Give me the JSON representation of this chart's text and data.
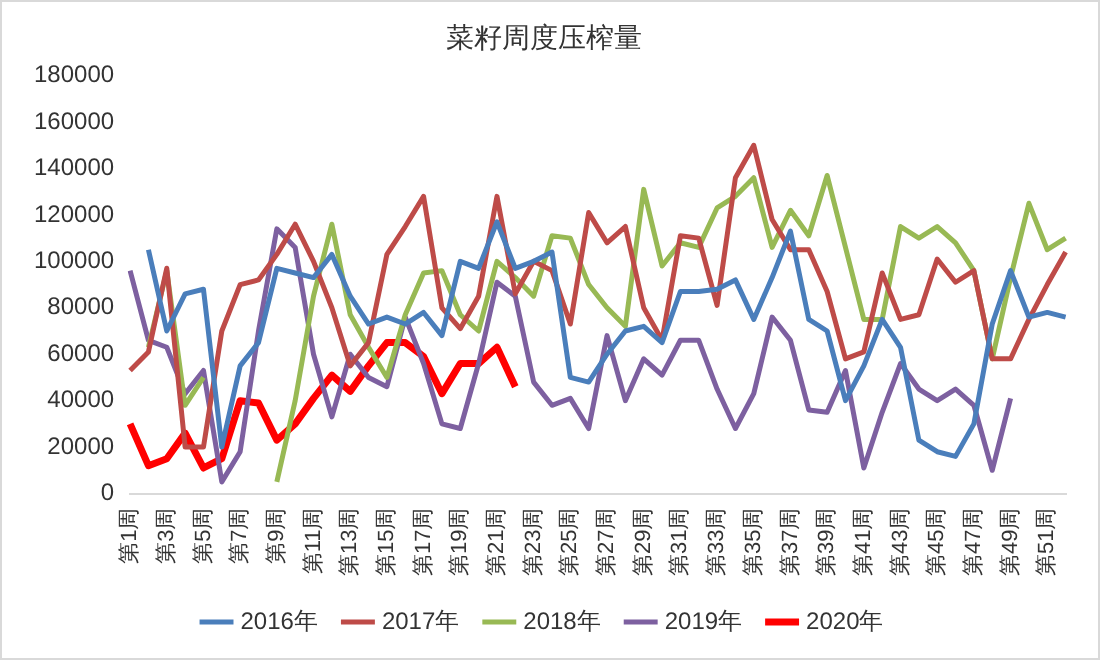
{
  "chart_data": {
    "type": "line",
    "title": "菜籽周度压榨量",
    "categories": [
      "第1周",
      null,
      "第3周",
      null,
      "第5周",
      null,
      "第7周",
      null,
      "第9周",
      null,
      "第11周",
      null,
      "第13周",
      null,
      "第15周",
      null,
      "第17周",
      null,
      "第19周",
      null,
      "第21周",
      null,
      "第23周",
      null,
      "第25周",
      null,
      "第27周",
      null,
      "第29周",
      null,
      "第31周",
      null,
      "第33周",
      null,
      "第35周",
      null,
      "第37周",
      null,
      "第39周",
      null,
      "第41周",
      null,
      "第43周",
      null,
      "第45周",
      null,
      "第47周",
      null,
      "第49周",
      null,
      "第51周",
      null
    ],
    "series": [
      {
        "name": "2016年",
        "color": "#4a7ebb",
        "values": [
          null,
          105000,
          70000,
          86000,
          88000,
          20000,
          55000,
          65000,
          97000,
          95000,
          93000,
          103000,
          85000,
          73000,
          76000,
          73000,
          78000,
          68000,
          100000,
          97000,
          117000,
          97000,
          100000,
          104000,
          50000,
          48000,
          60000,
          70000,
          72000,
          65000,
          87000,
          87000,
          88000,
          92000,
          75000,
          93000,
          113000,
          75000,
          70000,
          40000,
          55000,
          75000,
          63000,
          23000,
          18000,
          16000,
          30000,
          73000,
          96000,
          76000,
          78000,
          76000
        ]
      },
      {
        "name": "2017年",
        "color": "#be4b48",
        "values": [
          53000,
          61000,
          97000,
          20000,
          20000,
          70000,
          90000,
          92000,
          103000,
          116000,
          100000,
          80000,
          55000,
          65000,
          103000,
          115000,
          128000,
          80000,
          71000,
          85000,
          128000,
          86000,
          100000,
          96000,
          73000,
          121000,
          108000,
          115000,
          80000,
          66000,
          111000,
          110000,
          81000,
          136000,
          150000,
          118000,
          105000,
          105000,
          87000,
          58000,
          61000,
          95000,
          75000,
          77000,
          101000,
          91000,
          96000,
          58000,
          58000,
          75000,
          90000,
          104000
        ]
      },
      {
        "name": "2018年",
        "color": "#98b954",
        "values": [
          null,
          63000,
          96000,
          38000,
          50000,
          null,
          null,
          null,
          5000,
          40000,
          85000,
          116000,
          77000,
          63000,
          50000,
          77000,
          95000,
          96000,
          77000,
          70000,
          100000,
          93000,
          85000,
          111000,
          110000,
          90000,
          80000,
          72000,
          131000,
          98000,
          108000,
          106000,
          123000,
          128000,
          136000,
          106000,
          122000,
          111000,
          137000,
          106000,
          75000,
          75000,
          115000,
          110000,
          115000,
          108000,
          96000,
          58000,
          93000,
          125000,
          105000,
          110000
        ]
      },
      {
        "name": "2019年",
        "color": "#7d60a0",
        "values": [
          96000,
          66000,
          63000,
          43000,
          53000,
          5000,
          18000,
          70000,
          114000,
          106000,
          60000,
          33000,
          60000,
          50000,
          46000,
          76000,
          56000,
          30000,
          28000,
          56000,
          91000,
          85000,
          48000,
          38000,
          41000,
          28000,
          68000,
          40000,
          58000,
          51000,
          66000,
          66000,
          45000,
          28000,
          43000,
          76000,
          66000,
          36000,
          35000,
          53000,
          11000,
          35000,
          56000,
          45000,
          40000,
          45000,
          38000,
          10000,
          41000,
          null,
          null,
          null
        ]
      },
      {
        "name": "2020年",
        "color": "#ff0000",
        "values": [
          30000,
          12000,
          15000,
          26000,
          11000,
          15000,
          40000,
          39000,
          23000,
          30000,
          41000,
          51000,
          44000,
          55000,
          65000,
          65000,
          59000,
          43000,
          56000,
          56000,
          63000,
          46000,
          null,
          null,
          null,
          null,
          null,
          null,
          null,
          null,
          null,
          null,
          null,
          null,
          null,
          null,
          null,
          null,
          null,
          null,
          null,
          null,
          null,
          null,
          null,
          null,
          null,
          null,
          null,
          null,
          null,
          null
        ]
      }
    ],
    "ylim": [
      0,
      180000
    ],
    "yticks": [
      0,
      20000,
      40000,
      60000,
      80000,
      100000,
      120000,
      140000,
      160000,
      180000
    ],
    "grid": false,
    "legend": "bottom",
    "marker": "none",
    "line_style": "solid"
  }
}
